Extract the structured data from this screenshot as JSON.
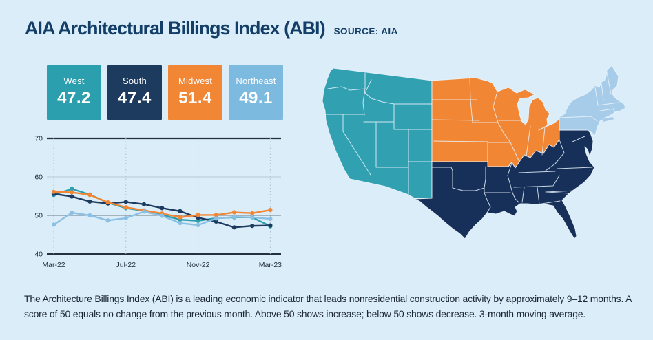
{
  "page": {
    "background": "#DBEDF8"
  },
  "header": {
    "title": "AIA Architectural Billings Index (ABI)",
    "source": "SOURCE: AIA",
    "title_color": "#123E68"
  },
  "cards": [
    {
      "region": "West",
      "value": "47.2",
      "color": "#2C9FAE"
    },
    {
      "region": "South",
      "value": "47.4",
      "color": "#1D3A5F"
    },
    {
      "region": "Midwest",
      "value": "51.4",
      "color": "#F18634"
    },
    {
      "region": "Northeast",
      "value": "49.1",
      "color": "#7DBADF"
    }
  ],
  "chart_data": {
    "type": "line",
    "x": [
      "Mar-22",
      "Apr-22",
      "May-22",
      "Jun-22",
      "Jul-22",
      "Aug-22",
      "Sep-22",
      "Oct-22",
      "Nov-22",
      "Dec-22",
      "Jan-23",
      "Feb-23",
      "Mar-23"
    ],
    "x_tick_labels": [
      "Mar-22",
      "Jul-22",
      "Nov-22",
      "Mar-23"
    ],
    "x_tick_indices": [
      0,
      4,
      8,
      12
    ],
    "ylim": [
      40,
      70
    ],
    "yticks": [
      40,
      50,
      60,
      70
    ],
    "grid": "horizontal lines at yticks, dotted vertical lines at labeled ticks",
    "legend_position": "none (cards above act as legend)",
    "series": [
      {
        "name": "West",
        "color": "#2C9FAE",
        "values": [
          55.3,
          56.9,
          55.4,
          53.3,
          51.9,
          51.2,
          50.1,
          48.9,
          48.6,
          49.3,
          49.5,
          49.5,
          47.2
        ]
      },
      {
        "name": "South",
        "color": "#1D3A5F",
        "values": [
          55.6,
          54.9,
          53.6,
          53.1,
          53.5,
          52.9,
          51.9,
          51.1,
          49.4,
          48.4,
          46.9,
          47.3,
          47.4
        ]
      },
      {
        "name": "Midwest",
        "color": "#F18634",
        "values": [
          56.1,
          56.0,
          55.3,
          53.4,
          52.1,
          51.3,
          50.5,
          49.5,
          50.1,
          50.1,
          50.8,
          50.6,
          51.4
        ]
      },
      {
        "name": "Northeast",
        "color": "#8BC0E4",
        "values": [
          47.6,
          50.7,
          50.0,
          48.7,
          49.3,
          51.0,
          49.9,
          48.0,
          47.5,
          49.2,
          49.6,
          49.5,
          49.1
        ]
      }
    ],
    "axis": {
      "strong_color": "#25313C",
      "minor_color": "#BBC9D3",
      "mid_color": "#6E7B86",
      "dotted_color": "#A8BDCB",
      "label_color": "#232F3A"
    }
  },
  "map": {
    "regions": [
      {
        "name": "West",
        "color": "#31A1B1"
      },
      {
        "name": "Midwest",
        "color": "#F18634"
      },
      {
        "name": "South",
        "color": "#16305A"
      },
      {
        "name": "Northeast",
        "color": "#A7CCE9"
      }
    ]
  },
  "footnote": {
    "text": "The Architecture Billings Index (ABI) is a leading economic indicator that leads nonresidential construction activity by approximately 9–12 months. A score of 50 equals no change from the previous month. Above 50 shows increase; below 50 shows decrease. 3-month moving average."
  }
}
